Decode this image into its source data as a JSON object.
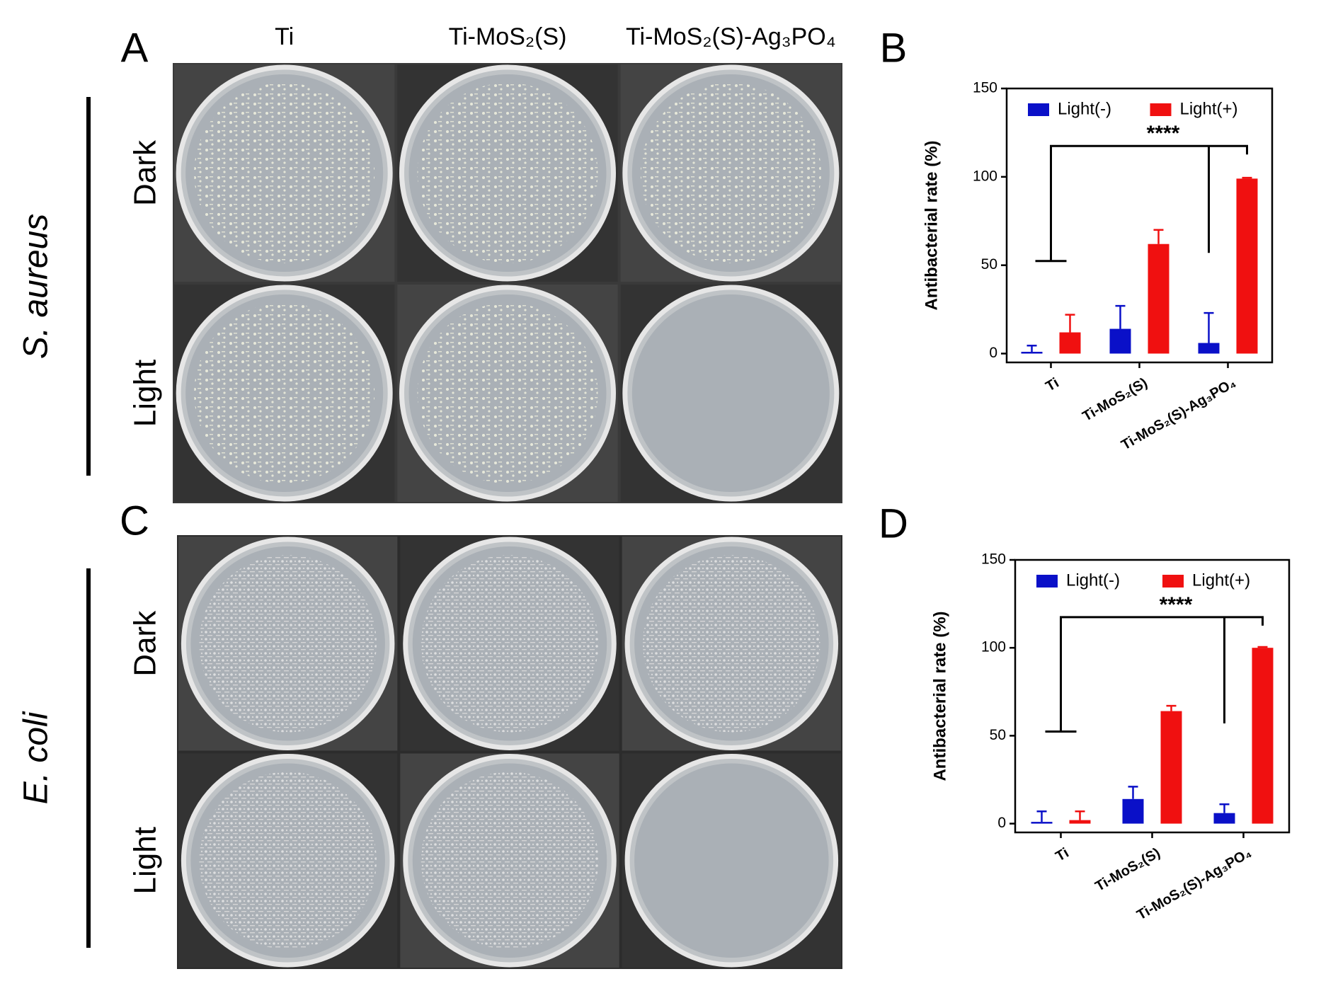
{
  "panels": [
    {
      "letter": "A",
      "columns": [
        "Ti",
        "Ti-MoS₂(S)",
        "Ti-MoS₂(S)-Ag₃PO₄"
      ],
      "rows": [
        "Dark",
        "Light"
      ],
      "species": "S. aureus"
    },
    {
      "letter": "C",
      "rows": [
        "Dark",
        "Light"
      ],
      "species": "E. coli"
    }
  ],
  "chart_data": [
    {
      "type": "bar",
      "letter": "B",
      "ylabel": "Antibacterial rate (%)",
      "categories": [
        "Ti",
        "Ti-MoS₂(S)",
        "Ti-MoS₂(S)-Ag₃PO₄"
      ],
      "series": [
        {
          "name": "Light(-)",
          "color": "#0a10c8",
          "values": [
            1,
            14,
            6
          ],
          "errors": [
            3.5,
            13,
            17
          ]
        },
        {
          "name": "Light(+)",
          "color": "#f01010",
          "values": [
            12,
            62,
            99
          ],
          "errors": [
            10,
            8,
            0.5
          ]
        }
      ],
      "ylim": [
        -5,
        150
      ],
      "yticks": [
        0,
        50,
        100,
        150
      ],
      "annotation": "****"
    },
    {
      "type": "bar",
      "letter": "D",
      "ylabel": "Antibacterial rate (%)",
      "categories": [
        "Ti",
        "Ti-MoS₂(S)",
        "Ti-MoS₂(S)-Ag₃PO₄"
      ],
      "series": [
        {
          "name": "Light(-)",
          "color": "#0a10c8",
          "values": [
            1,
            14,
            6
          ],
          "errors": [
            6,
            7,
            5
          ]
        },
        {
          "name": "Light(+)",
          "color": "#f01010",
          "values": [
            2,
            64,
            100
          ],
          "errors": [
            5,
            3,
            0.5
          ]
        }
      ],
      "ylim": [
        -5,
        150
      ],
      "yticks": [
        0,
        50,
        100,
        150
      ],
      "annotation": "****"
    }
  ]
}
